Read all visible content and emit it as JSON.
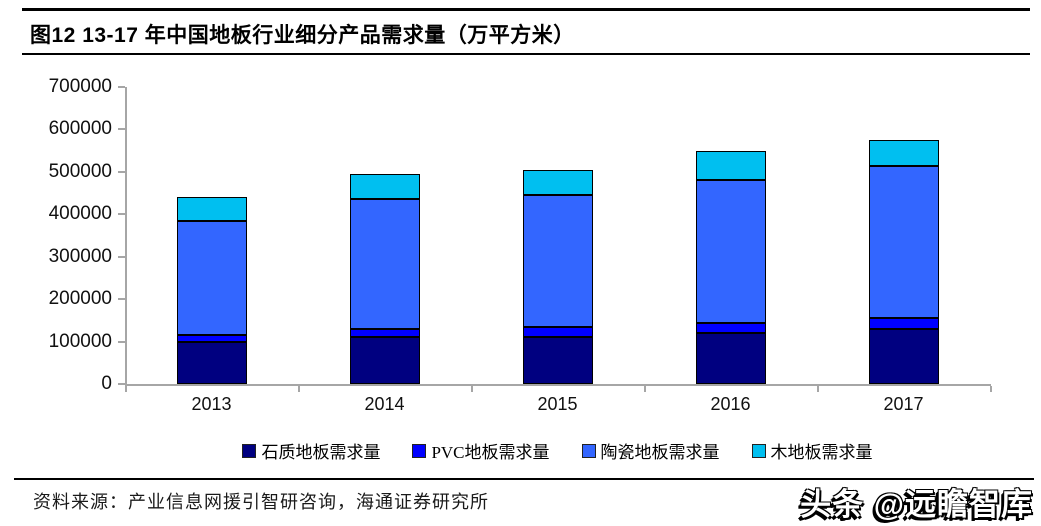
{
  "header": {
    "title": "图12  13-17 年中国地板行业细分产品需求量（万平方米）"
  },
  "chart_data": {
    "type": "bar",
    "stacked": true,
    "title": "13-17 年中国地板行业细分产品需求量（万平方米）",
    "categories": [
      "2013",
      "2014",
      "2015",
      "2016",
      "2017"
    ],
    "series": [
      {
        "name": "石质地板需求量",
        "color": "#000080",
        "values": [
          100000,
          110000,
          110000,
          120000,
          130000
        ]
      },
      {
        "name": "PVC地板需求量",
        "color": "#0000ff",
        "values": [
          15000,
          20000,
          25000,
          25000,
          25000
        ]
      },
      {
        "name": "陶瓷地板需求量",
        "color": "#3366ff",
        "values": [
          270000,
          305000,
          310000,
          335000,
          360000
        ]
      },
      {
        "name": "木地板需求量",
        "color": "#00bff0",
        "values": [
          55000,
          60000,
          60000,
          70000,
          60000
        ]
      }
    ],
    "totals": [
      440000,
      495000,
      505000,
      550000,
      575000
    ],
    "xlabel": "",
    "ylabel": "",
    "ylim": [
      0,
      700000
    ],
    "yticks": [
      0,
      100000,
      200000,
      300000,
      400000,
      500000,
      600000,
      700000
    ],
    "grid": false,
    "legend_position": "bottom",
    "axis_color": "#a6a6a6",
    "bar_border_color": "#000000"
  },
  "footer": {
    "source": "资料来源：产业信息网援引智研咨询，海通证券研究所"
  },
  "watermark": {
    "text": "头条 @远瞻智库"
  }
}
